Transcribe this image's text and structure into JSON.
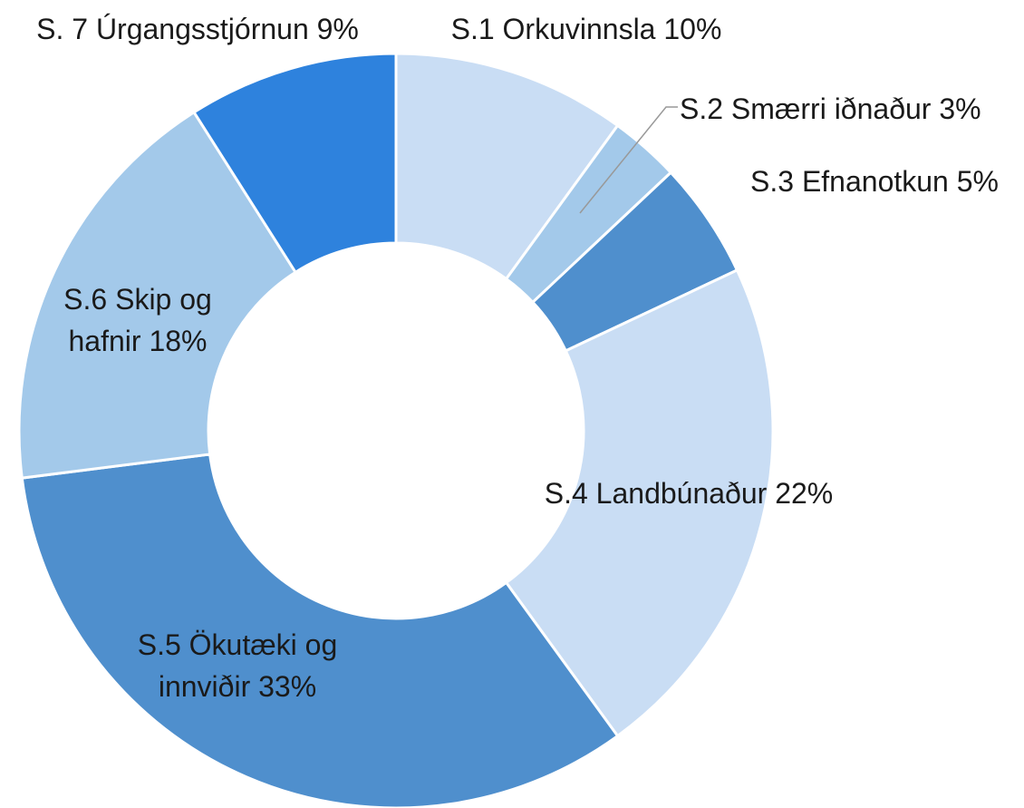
{
  "chart_data": {
    "type": "donut",
    "categories": [
      "S.1 Orkuvinnsla",
      "S.2 Smærri iðnaður",
      "S.3 Efnanotkun",
      "S.4 Landbúnaður",
      "S.5 Ökutæki og innviðir",
      "S.6 Skip og hafnir",
      "S. 7 Úrgangsstjórnun"
    ],
    "values": [
      10,
      3,
      5,
      22,
      33,
      18,
      9
    ],
    "value_labels": [
      "10%",
      "3%",
      "5%",
      "22%",
      "33%",
      "18%",
      "9%"
    ],
    "colors": [
      "#c9ddf4",
      "#a3c9ea",
      "#4f8fcd",
      "#c9ddf4",
      "#4f8fcd",
      "#a3c9ea",
      "#2e82dd"
    ]
  }
}
